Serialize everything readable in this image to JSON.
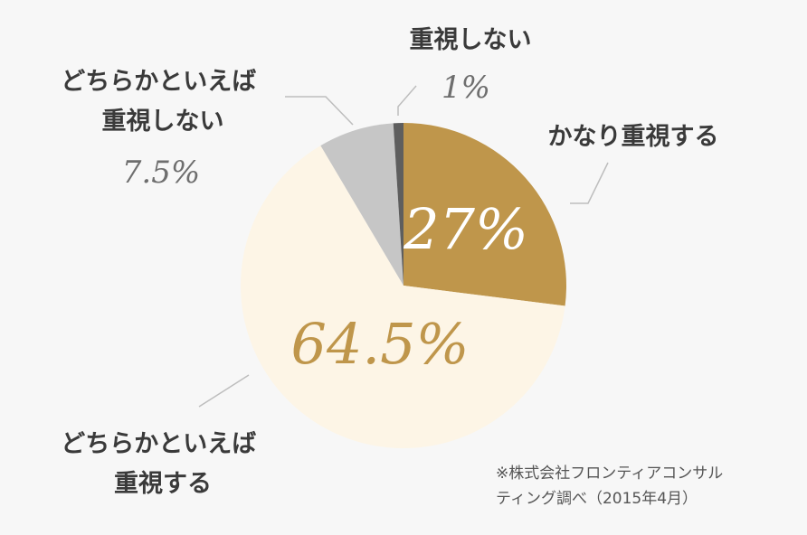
{
  "chart_data": {
    "type": "pie",
    "slices": [
      {
        "label_lines": [
          "かなり重視する"
        ],
        "value": 27,
        "display": "27%",
        "color": "#bf964b",
        "value_color": "#ffffff"
      },
      {
        "label_lines": [
          "どちらかといえば",
          "重視する"
        ],
        "value": 64.5,
        "display": "64.5%",
        "color": "#fdf5e6",
        "value_color": "#bf964b"
      },
      {
        "label_lines": [
          "どちらかといえば",
          "重視しない"
        ],
        "value": 7.5,
        "display": "7.5%",
        "color": "#c6c6c6",
        "value_color": "#6e6e6e"
      },
      {
        "label_lines": [
          "重視しない"
        ],
        "value": 1,
        "display": "1%",
        "color": "#5e5e5e",
        "value_color": "#6e6e6e"
      }
    ],
    "start_angle_deg": 0,
    "direction": "clockwise",
    "legend": "none"
  },
  "source": {
    "lines": [
      "※株式会社フロンティアコンサル",
      "ティング調べ（2015年4月）"
    ]
  }
}
